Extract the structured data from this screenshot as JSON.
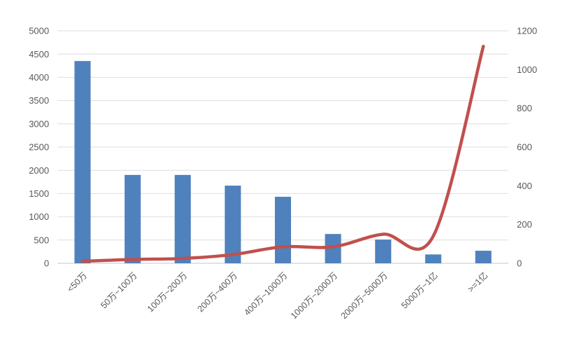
{
  "chart_data": {
    "type": "bar",
    "combo": "bar+line",
    "title": "",
    "legend": false,
    "grid": true,
    "background": "#ffffff",
    "categories": [
      "<50万",
      "50万~100万",
      "100万~200万",
      "200万~400万",
      "400万~1000万",
      "1000万~2000万",
      "2000万~5000万",
      "5000万~1亿",
      ">=1亿"
    ],
    "series": [
      {
        "name": "bar-series",
        "type": "bar",
        "axis": "left",
        "color": "#4F81BD",
        "values": [
          4350,
          1900,
          1900,
          1670,
          1430,
          630,
          510,
          190,
          270
        ]
      },
      {
        "name": "line-series",
        "type": "line",
        "axis": "right",
        "color": "#C0504D",
        "smooth": true,
        "values": [
          10,
          20,
          25,
          45,
          85,
          85,
          150,
          140,
          1120
        ]
      }
    ],
    "left_axis": {
      "min": 0,
      "max": 5000,
      "step": 500,
      "tick_labels": [
        "0",
        "500",
        "1000",
        "1500",
        "2000",
        "2500",
        "3000",
        "3500",
        "4000",
        "4500",
        "5000"
      ]
    },
    "right_axis": {
      "min": 0,
      "max": 1200,
      "step": 200,
      "tick_labels": [
        "0",
        "200",
        "400",
        "600",
        "800",
        "1000",
        "1200"
      ]
    },
    "colors": {
      "bar": "#4F81BD",
      "line": "#C0504D",
      "gridline": "#DEDEDE",
      "axis_line": "#C6C6C6",
      "tick_text": "#595959"
    }
  }
}
